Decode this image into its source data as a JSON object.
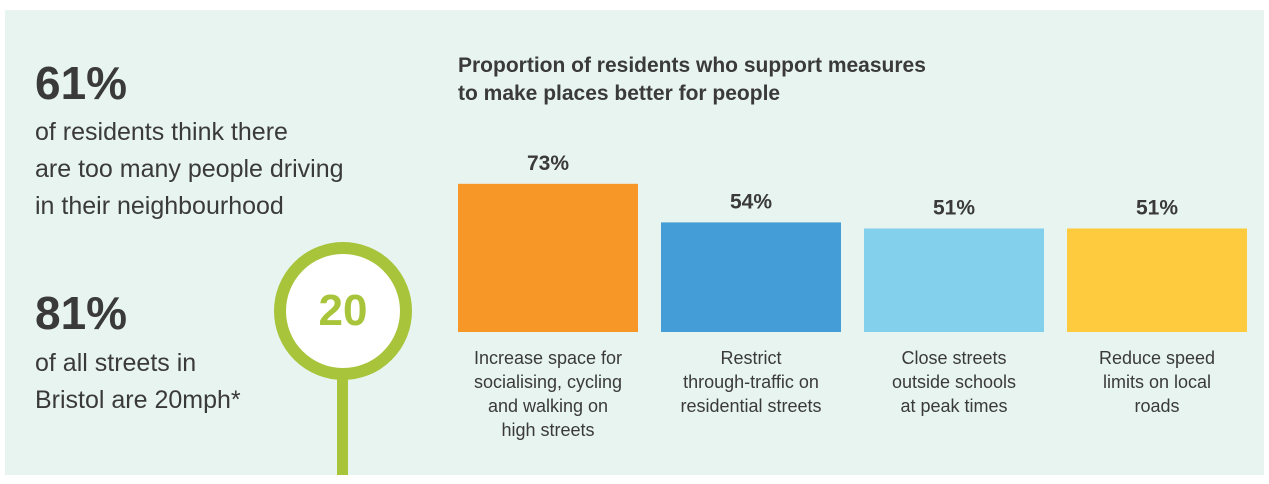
{
  "stats": [
    {
      "value": "61%",
      "text_lines": [
        "of residents think there",
        "are too many people driving",
        "in their neighbourhood"
      ]
    },
    {
      "value": "81%",
      "text_lines": [
        "of all streets in",
        "Bristol are 20mph*"
      ]
    }
  ],
  "speed_sign": {
    "label": "20",
    "color": "#a8c43a"
  },
  "chart_data": {
    "type": "bar",
    "title_lines": [
      "Proportion of residents who support measures",
      "to make places better for people"
    ],
    "categories": [
      "Increase space for socialising, cycling and walking on high streets",
      "Restrict through-traffic on residential streets",
      "Close streets outside schools at peak times",
      "Reduce speed limits on local roads"
    ],
    "category_label_lines": [
      [
        "Increase space for",
        "socialising, cycling",
        "and walking on",
        "high streets"
      ],
      [
        "Restrict",
        "through-traffic on",
        "residential streets"
      ],
      [
        "Close streets",
        "outside schools",
        "at peak times"
      ],
      [
        "Reduce speed",
        "limits on local",
        "roads"
      ]
    ],
    "values": [
      73,
      54,
      51,
      51
    ],
    "value_labels": [
      "73%",
      "54%",
      "51%",
      "51%"
    ],
    "colors": [
      "#f79727",
      "#449dd6",
      "#82d0eb",
      "#fecb3f"
    ],
    "ylim": [
      0,
      100
    ],
    "grid": false
  }
}
